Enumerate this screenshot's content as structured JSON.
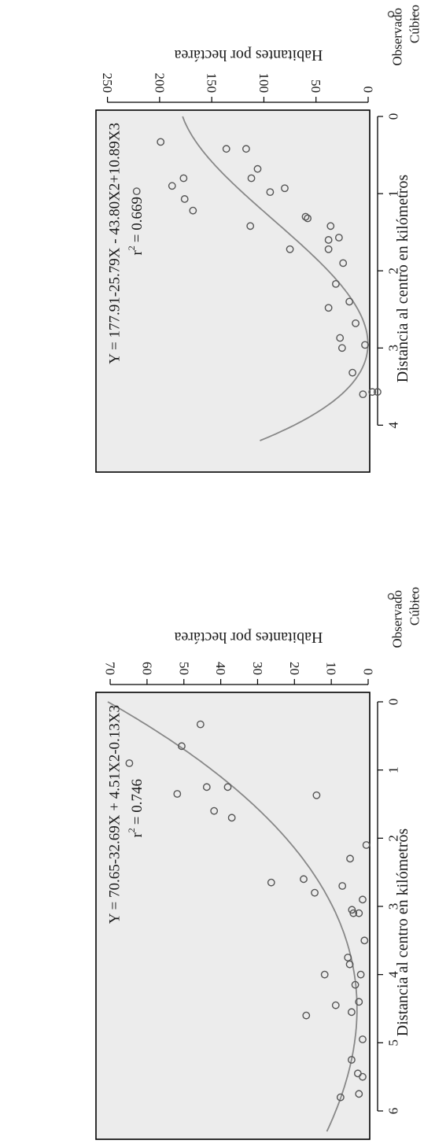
{
  "chart_data": [
    {
      "type": "scatter",
      "fit": "cubic",
      "xlabel": "Distancia al centro en kilómetros",
      "ylabel": "Habitantes por hectárea",
      "xlim": [
        0,
        6.3
      ],
      "ylim": [
        0,
        73
      ],
      "xticks": [
        0,
        1,
        2,
        3,
        4,
        5,
        6
      ],
      "yticks": [
        0,
        10,
        20,
        30,
        40,
        50,
        60,
        70
      ],
      "equation": "Y = 70.65-32.69X + 4.51X2-0.13X3",
      "r2_label": "r",
      "r2_value": "= 0.746",
      "legend": {
        "observed": "Observado",
        "fitted": "Cúbico"
      },
      "coefficients": [
        70.65,
        -32.69,
        4.51,
        -0.13
      ],
      "points": [
        [
          0.33,
          45.5
        ],
        [
          0.65,
          50.6
        ],
        [
          0.9,
          64.8
        ],
        [
          1.25,
          38.1
        ],
        [
          1.25,
          43.8
        ],
        [
          1.35,
          51.8
        ],
        [
          1.37,
          14.0
        ],
        [
          1.6,
          41.8
        ],
        [
          1.7,
          37.0
        ],
        [
          2.1,
          0.5
        ],
        [
          2.3,
          4.9
        ],
        [
          2.6,
          17.5
        ],
        [
          2.65,
          26.3
        ],
        [
          2.7,
          7.0
        ],
        [
          2.8,
          14.5
        ],
        [
          2.9,
          1.5
        ],
        [
          3.05,
          4.4
        ],
        [
          3.1,
          2.5
        ],
        [
          3.1,
          4.0
        ],
        [
          3.5,
          1.0
        ],
        [
          3.75,
          5.5
        ],
        [
          3.85,
          5.0
        ],
        [
          4.0,
          2.0
        ],
        [
          4.0,
          11.8
        ],
        [
          4.15,
          3.5
        ],
        [
          4.4,
          2.5
        ],
        [
          4.45,
          8.8
        ],
        [
          4.55,
          4.5
        ],
        [
          4.6,
          16.8
        ],
        [
          4.95,
          1.5
        ],
        [
          5.25,
          4.5
        ],
        [
          5.45,
          2.8
        ],
        [
          5.5,
          1.5
        ],
        [
          5.75,
          2.5
        ],
        [
          5.8,
          7.5
        ]
      ]
    },
    {
      "type": "scatter",
      "fit": "cubic",
      "xlabel": "Distancia al centro en kilómetros",
      "ylabel": "Habitantes por hectárea",
      "xlim": [
        0,
        4.2
      ],
      "ylim": [
        0,
        258
      ],
      "xticks": [
        0,
        1,
        2,
        3,
        4
      ],
      "yticks": [
        0,
        50,
        100,
        150,
        200,
        250
      ],
      "equation": "Y = 177.91-25.79X - 43.80X2+10.89X3",
      "r2_label": "r",
      "r2_value": "= 0.669",
      "legend": {
        "observed": "Observado",
        "fitted": "Cúbico"
      },
      "coefficients": [
        177.91,
        -25.79,
        -43.8,
        10.89
      ],
      "points": [
        [
          0.33,
          199
        ],
        [
          0.42,
          136
        ],
        [
          0.42,
          117
        ],
        [
          0.68,
          106
        ],
        [
          0.8,
          177
        ],
        [
          0.8,
          112
        ],
        [
          0.9,
          188
        ],
        [
          0.93,
          80
        ],
        [
          0.97,
          222
        ],
        [
          0.98,
          94
        ],
        [
          1.07,
          176
        ],
        [
          1.22,
          168
        ],
        [
          1.3,
          60
        ],
        [
          1.32,
          58
        ],
        [
          1.42,
          113
        ],
        [
          1.42,
          36
        ],
        [
          1.57,
          28
        ],
        [
          1.6,
          38
        ],
        [
          1.72,
          75
        ],
        [
          1.72,
          38
        ],
        [
          1.9,
          24
        ],
        [
          2.17,
          31
        ],
        [
          2.4,
          18
        ],
        [
          2.48,
          38
        ],
        [
          2.68,
          12
        ],
        [
          2.87,
          27
        ],
        [
          2.96,
          3
        ],
        [
          3.0,
          25
        ],
        [
          3.32,
          15
        ],
        [
          3.6,
          5
        ],
        [
          3.57,
          -4
        ],
        [
          3.57,
          -9
        ]
      ]
    }
  ]
}
